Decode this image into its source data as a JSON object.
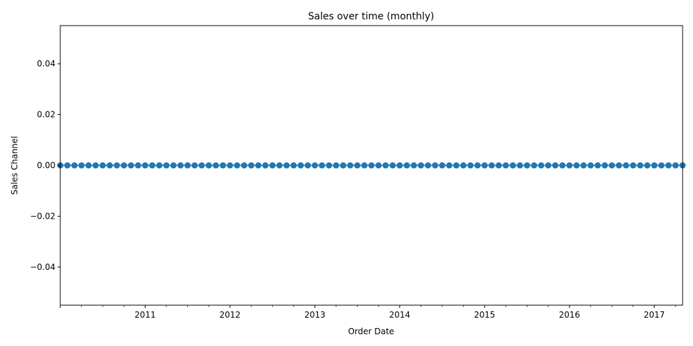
{
  "chart_data": {
    "type": "line",
    "title": "Sales over time (monthly)",
    "xlabel": "Order Date",
    "ylabel": "Sales Channel",
    "x_start": "2010-01",
    "x_end": "2017-05",
    "x_frequency": "monthly",
    "xlim": [
      "2010-01",
      "2017-05"
    ],
    "ylim": [
      -0.055,
      0.055
    ],
    "x_ticks": [
      "2011",
      "2012",
      "2013",
      "2014",
      "2015",
      "2016",
      "2017"
    ],
    "y_ticks": [
      "0.04",
      "0.02",
      "0.00",
      "−0.02",
      "−0.04"
    ],
    "y_tick_values": [
      0.04,
      0.02,
      0.0,
      -0.02,
      -0.04
    ],
    "series": [
      {
        "constant_value": 0.0,
        "marker": "circle"
      }
    ],
    "grid": false,
    "legend": "none",
    "colors": {
      "series": "#1f77b4",
      "axes": "#000000"
    }
  }
}
